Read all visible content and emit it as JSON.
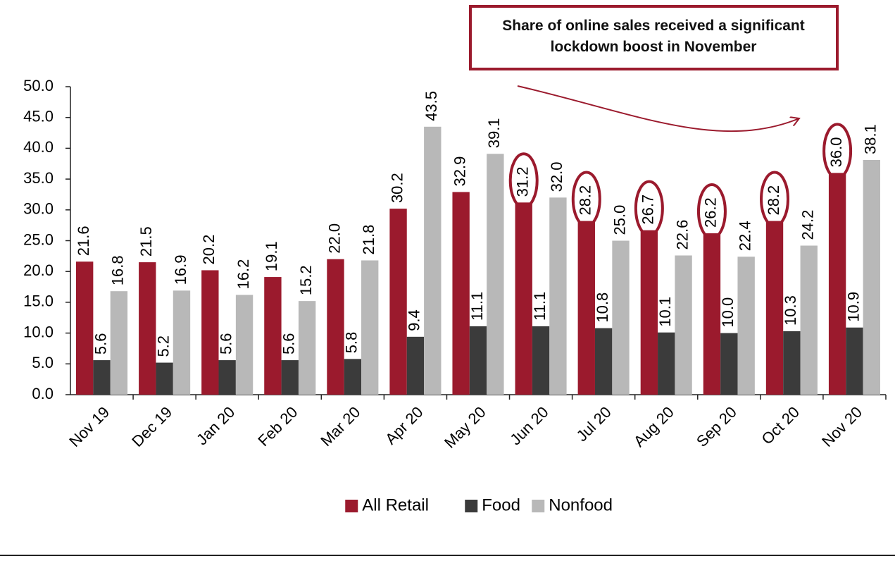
{
  "chart_data": {
    "type": "bar",
    "annotation": [
      "Share of online sales received a significant",
      "lockdown boost in November"
    ],
    "categories": [
      "Nov 19",
      "Dec 19",
      "Jan 20",
      "Feb 20",
      "Mar 20",
      "Apr 20",
      "May 20",
      "Jun 20",
      "Jul 20",
      "Aug 20",
      "Sep 20",
      "Oct 20",
      "Nov 20"
    ],
    "series": [
      {
        "name": "All Retail",
        "color": "#9b1a2d",
        "values": [
          21.6,
          21.5,
          20.2,
          19.1,
          22.0,
          30.2,
          32.9,
          31.2,
          28.2,
          26.7,
          26.2,
          28.2,
          36.0
        ],
        "value_labels": [
          "21.6",
          "21.5",
          "20.2",
          "19.1",
          "22.0",
          "30.2",
          "32.9",
          "31.2",
          "28.2",
          "26.7",
          "26.2",
          "28.2",
          "36.0"
        ],
        "highlight": [
          7,
          8,
          9,
          10,
          11,
          12
        ]
      },
      {
        "name": "Food",
        "color": "#3b3b3b",
        "values": [
          5.6,
          5.2,
          5.6,
          5.6,
          5.8,
          9.4,
          11.1,
          11.1,
          10.8,
          10.1,
          10.0,
          10.3,
          10.9
        ],
        "value_labels": [
          "5.6",
          "5.2",
          "5.6",
          "5.6",
          "5.8",
          "9.4",
          "11.1",
          "11.1",
          "10.8",
          "10.1",
          "10.0",
          "10.3",
          "10.9"
        ]
      },
      {
        "name": "Nonfood",
        "color": "#b8b8b8",
        "values": [
          16.8,
          16.9,
          16.2,
          15.2,
          21.8,
          43.5,
          39.1,
          32.0,
          25.0,
          22.6,
          22.4,
          24.2,
          38.1
        ],
        "value_labels": [
          "16.8",
          "16.9",
          "16.2",
          "15.2",
          "21.8",
          "43.5",
          "39.1",
          "32.0",
          "25.0",
          "22.6",
          "22.4",
          "24.2",
          "38.1"
        ]
      }
    ],
    "ylim": [
      0,
      50
    ],
    "yticks": [
      {
        "value": 0,
        "label": "0.0"
      },
      {
        "value": 5,
        "label": "5.0"
      },
      {
        "value": 10,
        "label": "10.0"
      },
      {
        "value": 15,
        "label": "15.0"
      },
      {
        "value": 20,
        "label": "20.0"
      },
      {
        "value": 25,
        "label": "25.0"
      },
      {
        "value": 30,
        "label": "30.0"
      },
      {
        "value": 35,
        "label": "35.0"
      },
      {
        "value": 40,
        "label": "40.0"
      },
      {
        "value": 45,
        "label": "45.0"
      },
      {
        "value": 50,
        "label": "50.0"
      }
    ],
    "highlight_color": "#9b1a2d",
    "legend": "bottom"
  }
}
